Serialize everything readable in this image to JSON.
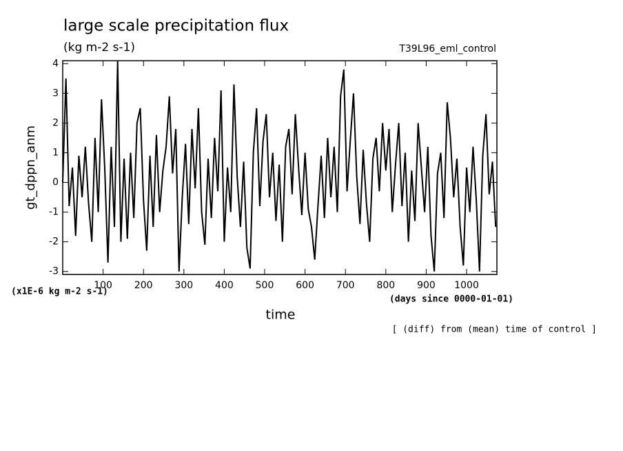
{
  "chart_data": {
    "type": "line",
    "title": "large scale precipitation flux",
    "subtitle": "(kg m-2 s-1)",
    "run_label": "T39L96_eml_control",
    "y_label": "gt_dppn_anm",
    "y_unit_label": "(x1E-6 kg m-2 s-1)",
    "x_label": "time",
    "x_unit_label": "(days since 0000-01-01)",
    "note": "[ (diff) from (mean) time of control ]",
    "xlim": [
      0,
      1075
    ],
    "ylim": [
      -3.1,
      4.1
    ],
    "xticks": [
      100,
      200,
      300,
      400,
      500,
      600,
      700,
      800,
      900,
      1000
    ],
    "yticks": [
      -3,
      -2,
      -1,
      0,
      1,
      2,
      3,
      4
    ],
    "x": [
      0,
      8,
      16,
      24,
      32,
      40,
      48,
      56,
      64,
      72,
      80,
      88,
      96,
      104,
      112,
      120,
      128,
      136,
      144,
      152,
      160,
      168,
      176,
      184,
      192,
      200,
      208,
      216,
      224,
      232,
      240,
      248,
      256,
      264,
      272,
      280,
      288,
      296,
      304,
      312,
      320,
      328,
      336,
      344,
      352,
      360,
      368,
      376,
      384,
      392,
      400,
      408,
      416,
      424,
      432,
      440,
      448,
      456,
      464,
      472,
      480,
      488,
      496,
      504,
      512,
      520,
      528,
      536,
      544,
      552,
      560,
      568,
      576,
      584,
      592,
      600,
      608,
      616,
      624,
      632,
      640,
      648,
      656,
      664,
      672,
      680,
      688,
      696,
      704,
      712,
      720,
      728,
      736,
      744,
      752,
      760,
      768,
      776,
      784,
      792,
      800,
      808,
      816,
      824,
      832,
      840,
      848,
      856,
      864,
      872,
      880,
      888,
      896,
      904,
      912,
      920,
      928,
      936,
      944,
      952,
      960,
      968,
      976,
      984,
      992,
      1000,
      1008,
      1016,
      1024,
      1032,
      1040,
      1048,
      1056,
      1064,
      1072
    ],
    "series": [
      {
        "name": "gt_dppn_anm",
        "color": "#000000",
        "values": [
          0,
          3.5,
          -0.8,
          0.5,
          -1.8,
          0.9,
          -0.5,
          1.2,
          -0.7,
          -2.0,
          1.5,
          -1.0,
          2.8,
          0.5,
          -2.7,
          1.2,
          -1.5,
          4.1,
          -2.0,
          0.8,
          -1.9,
          1.0,
          -1.2,
          2.0,
          2.5,
          -0.6,
          -2.3,
          0.9,
          -1.5,
          1.6,
          -1.0,
          0.4,
          1.2,
          2.9,
          0.3,
          1.8,
          -3.0,
          -0.5,
          1.3,
          -1.4,
          1.8,
          -0.2,
          2.5,
          -1.0,
          -2.1,
          0.8,
          -1.2,
          1.5,
          -0.3,
          3.1,
          -2.0,
          0.5,
          -1.0,
          3.3,
          0.2,
          -1.5,
          0.7,
          -2.2,
          -2.9,
          1.0,
          2.5,
          -0.8,
          1.4,
          2.3,
          -0.5,
          1.0,
          -1.3,
          0.6,
          -2.0,
          1.2,
          1.8,
          -0.4,
          2.3,
          0.5,
          -1.1,
          1.0,
          -0.9,
          -1.5,
          -2.6,
          -0.8,
          0.9,
          -1.2,
          1.5,
          -0.5,
          1.2,
          -1.0,
          2.9,
          3.8,
          -0.3,
          1.4,
          3.0,
          0.2,
          -1.4,
          1.1,
          -0.7,
          -2.0,
          0.8,
          1.5,
          -0.3,
          2.0,
          0.4,
          1.8,
          -1.0,
          0.6,
          2.0,
          -0.8,
          1.0,
          -2.0,
          0.4,
          -1.3,
          2.0,
          0.5,
          -1.0,
          1.2,
          -1.8,
          -3.0,
          0.3,
          1.0,
          -1.2,
          2.7,
          1.5,
          -0.5,
          0.8,
          -1.5,
          -2.8,
          0.5,
          -1.0,
          1.2,
          -0.6,
          -3.0,
          0.9,
          2.3,
          -0.4,
          0.7,
          -1.5
        ]
      }
    ]
  }
}
